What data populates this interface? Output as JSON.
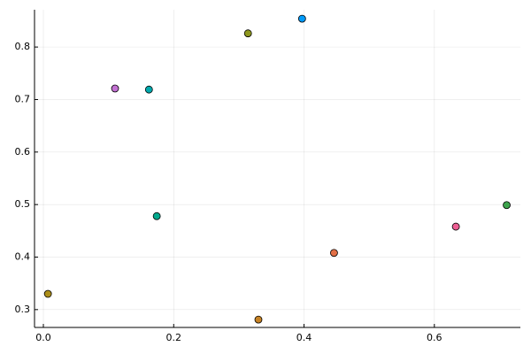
{
  "chart_data": {
    "type": "scatter",
    "series": [
      {
        "color": "#009af9",
        "x": [
          0.397
        ],
        "values": [
          0.854
        ]
      },
      {
        "color": "#e26f46",
        "x": [
          0.446
        ],
        "values": [
          0.408
        ]
      },
      {
        "color": "#3da44d",
        "x": [
          0.711
        ],
        "values": [
          0.499
        ]
      },
      {
        "color": "#c271d2",
        "x": [
          0.11
        ],
        "values": [
          0.721
        ]
      },
      {
        "color": "#ac8e18",
        "x": [
          0.007
        ],
        "values": [
          0.33
        ]
      },
      {
        "color": "#00a9ad",
        "x": [
          0.162
        ],
        "values": [
          0.719
        ]
      },
      {
        "color": "#ed5e93",
        "x": [
          0.633
        ],
        "values": [
          0.458
        ]
      },
      {
        "color": "#c68225",
        "x": [
          0.33
        ],
        "values": [
          0.281
        ]
      },
      {
        "color": "#00a98d",
        "x": [
          0.174
        ],
        "values": [
          0.478
        ]
      },
      {
        "color": "#8e971e",
        "x": [
          0.314
        ],
        "values": [
          0.826
        ]
      }
    ],
    "xlim": [
      -0.0136,
      0.732
    ],
    "ylim": [
      0.266,
      0.871
    ],
    "xticks": [
      {
        "value": 0,
        "label": "0.0"
      },
      0.2,
      0.4,
      0.6
    ],
    "yticks": [
      0.3,
      0.4,
      0.5,
      0.6,
      0.7,
      0.8
    ],
    "grid": true
  }
}
